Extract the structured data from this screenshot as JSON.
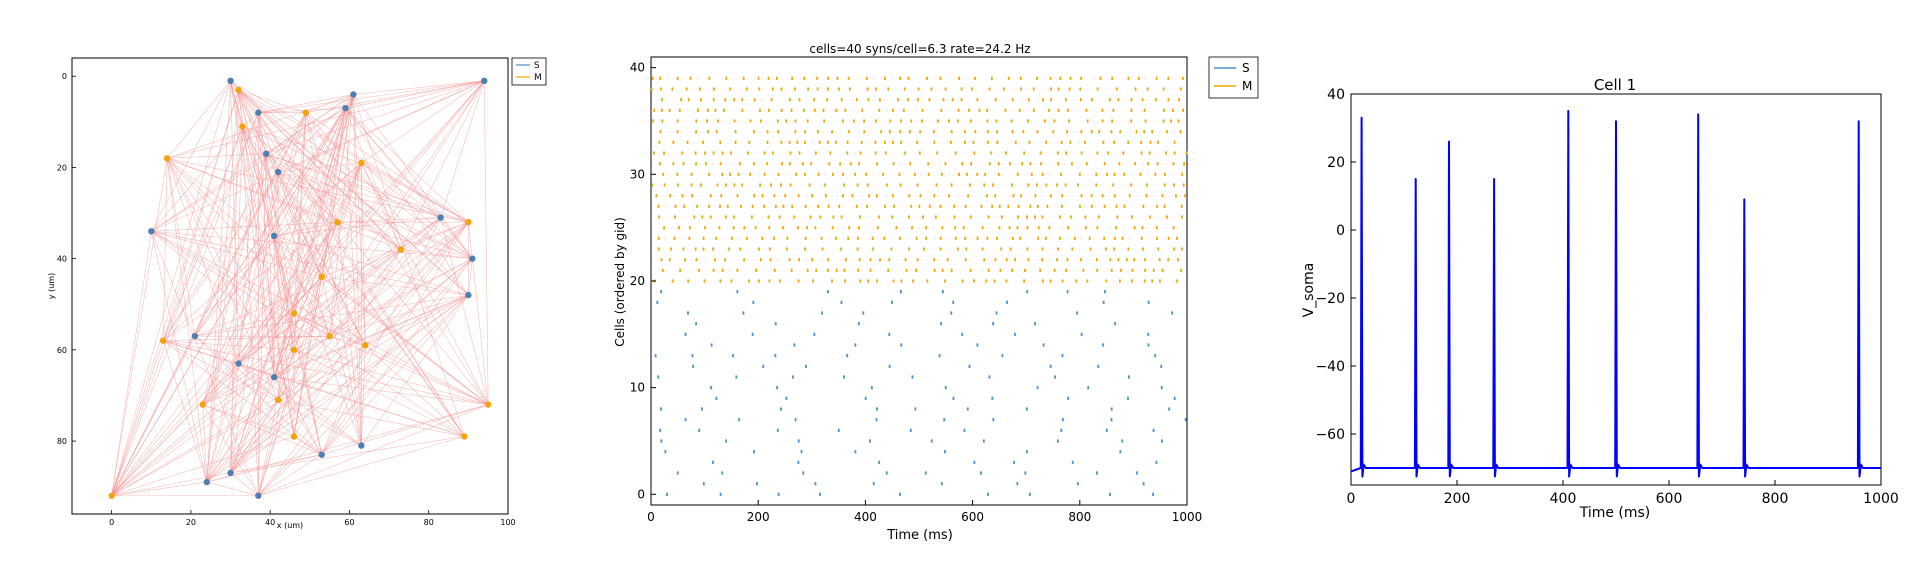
{
  "colors": {
    "s": "#4a8fd0",
    "m": "#f2a800",
    "edge": "#f28b8b",
    "trace": "#0000ff",
    "s_net": "#4f7fb0",
    "m_net": "#f5a30a"
  },
  "chart_data": [
    {
      "type": "scatter",
      "title": "",
      "xlabel": "x (um)",
      "ylabel": "y (um)",
      "xlim": [
        -10,
        100
      ],
      "ylim": [
        -4,
        96
      ],
      "y_inverted": true,
      "xticks": [
        "0",
        "20",
        "40",
        "60",
        "80",
        "100"
      ],
      "yticks": [
        "0",
        "20",
        "40",
        "60",
        "80"
      ],
      "legend": {
        "placement": "outside-right",
        "entries": [
          "S",
          "M"
        ]
      },
      "series": [
        {
          "name": "S",
          "points": [
            [
              30,
              1
            ],
            [
              37,
              8
            ],
            [
              39,
              17
            ],
            [
              42,
              21
            ],
            [
              41,
              35
            ],
            [
              10,
              34
            ],
            [
              21,
              57
            ],
            [
              32,
              63
            ],
            [
              41,
              66
            ],
            [
              24,
              89
            ],
            [
              30,
              87
            ],
            [
              37,
              92
            ],
            [
              53,
              83
            ],
            [
              63,
              81
            ],
            [
              59,
              7
            ],
            [
              61,
              4
            ],
            [
              83,
              31
            ],
            [
              91,
              40
            ],
            [
              90,
              48
            ],
            [
              94,
              1
            ]
          ]
        },
        {
          "name": "M",
          "points": [
            [
              32,
              3
            ],
            [
              33,
              11
            ],
            [
              49,
              8
            ],
            [
              14,
              18
            ],
            [
              63,
              19
            ],
            [
              57,
              32
            ],
            [
              73,
              38
            ],
            [
              90,
              32
            ],
            [
              53,
              44
            ],
            [
              46,
              52
            ],
            [
              13,
              58
            ],
            [
              55,
              57
            ],
            [
              46,
              60
            ],
            [
              64,
              59
            ],
            [
              42,
              71
            ],
            [
              23,
              72
            ],
            [
              46,
              79
            ],
            [
              89,
              79
            ],
            [
              95,
              72
            ],
            [
              0,
              92
            ]
          ]
        }
      ]
    },
    {
      "type": "raster",
      "title": "cells=40 syns/cell=6.3 rate=24.2 Hz",
      "xlabel": "Time (ms)",
      "ylabel": "Cells (ordered by gid)",
      "xlim": [
        0,
        1000
      ],
      "ylim": [
        -1,
        41
      ],
      "xticks": [
        "0",
        "200",
        "400",
        "600",
        "800",
        "1000"
      ],
      "yticks": [
        "0",
        "10",
        "20",
        "30",
        "40"
      ],
      "legend": {
        "placement": "outside-right",
        "entries": [
          "S",
          "M"
        ]
      },
      "series": [
        {
          "name": "S",
          "cells": [
            0,
            19
          ],
          "rate_hz": 8,
          "seed": 11
        },
        {
          "name": "M",
          "cells": [
            20,
            39
          ],
          "rate_hz": 40,
          "seed": 29
        }
      ]
    },
    {
      "type": "line",
      "title": "Cell 1",
      "xlabel": "Time (ms)",
      "ylabel": "V_soma",
      "xlim": [
        0,
        1000
      ],
      "ylim": [
        -75,
        40
      ],
      "xticks": [
        "0",
        "200",
        "400",
        "600",
        "800",
        "1000"
      ],
      "yticks": [
        "40",
        "20",
        "0",
        "−20",
        "−40",
        "−60"
      ],
      "resting_v": -70,
      "spikes": [
        {
          "t": 20,
          "peak": 33
        },
        {
          "t": 122,
          "peak": 15
        },
        {
          "t": 185,
          "peak": 26
        },
        {
          "t": 270,
          "peak": 15
        },
        {
          "t": 410,
          "peak": 35
        },
        {
          "t": 500,
          "peak": 32
        },
        {
          "t": 655,
          "peak": 34
        },
        {
          "t": 742,
          "peak": 9
        },
        {
          "t": 958,
          "peak": 32
        }
      ]
    }
  ]
}
